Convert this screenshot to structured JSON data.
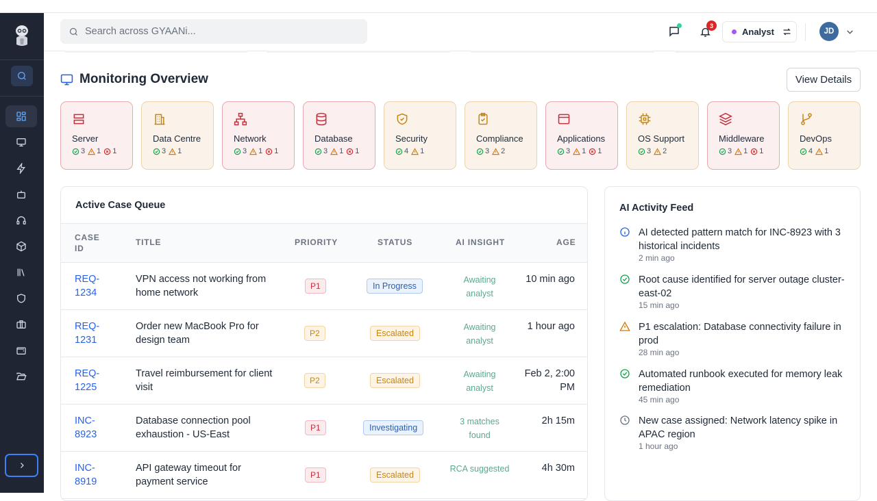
{
  "search": {
    "placeholder": "Search across GYAANi..."
  },
  "header": {
    "notifications_count": "3",
    "role_label": "Analyst",
    "avatar_initials": "JD"
  },
  "overview": {
    "title": "Monitoring Overview",
    "view_details": "View Details",
    "cards": [
      {
        "name": "Server",
        "ok": "3",
        "warn": "1",
        "err": "1",
        "icon": "server-icon",
        "tone": "red"
      },
      {
        "name": "Data Centre",
        "ok": "3",
        "warn": "1",
        "err": "",
        "icon": "building-icon",
        "tone": "amber"
      },
      {
        "name": "Network",
        "ok": "3",
        "warn": "1",
        "err": "1",
        "icon": "network-icon",
        "tone": "red"
      },
      {
        "name": "Database",
        "ok": "3",
        "warn": "1",
        "err": "1",
        "icon": "database-icon",
        "tone": "red"
      },
      {
        "name": "Security",
        "ok": "4",
        "warn": "1",
        "err": "",
        "icon": "shield-check-icon",
        "tone": "amber"
      },
      {
        "name": "Compliance",
        "ok": "3",
        "warn": "2",
        "err": "",
        "icon": "clipboard-check-icon",
        "tone": "amber"
      },
      {
        "name": "Applications",
        "ok": "3",
        "warn": "1",
        "err": "1",
        "icon": "app-window-icon",
        "tone": "red"
      },
      {
        "name": "OS Support",
        "ok": "3",
        "warn": "2",
        "err": "",
        "icon": "cpu-icon",
        "tone": "amber"
      },
      {
        "name": "Middleware",
        "ok": "3",
        "warn": "1",
        "err": "1",
        "icon": "layers-icon",
        "tone": "red"
      },
      {
        "name": "DevOps",
        "ok": "4",
        "warn": "1",
        "err": "",
        "icon": "git-branch-icon",
        "tone": "amber"
      }
    ]
  },
  "queue": {
    "title": "Active Case Queue",
    "columns": [
      "CASE ID",
      "TITLE",
      "PRIORITY",
      "STATUS",
      "AI INSIGHT",
      "AGE"
    ],
    "rows": [
      {
        "id": "REQ-1234",
        "title": "VPN access not working from home network",
        "priority": "P1",
        "status": "In Progress",
        "insight": "Awaiting analyst",
        "age": "10 min ago"
      },
      {
        "id": "REQ-1231",
        "title": "Order new MacBook Pro for design team",
        "priority": "P2",
        "status": "Escalated",
        "insight": "Awaiting analyst",
        "age": "1 hour ago"
      },
      {
        "id": "REQ-1225",
        "title": "Travel reimbursement for client visit",
        "priority": "P2",
        "status": "Escalated",
        "insight": "Awaiting analyst",
        "age": "Feb 2, 2:00 PM"
      },
      {
        "id": "INC-8923",
        "title": "Database connection pool exhaustion - US-East",
        "priority": "P1",
        "status": "Investigating",
        "insight": "3 matches found",
        "age": "2h 15m"
      },
      {
        "id": "INC-8919",
        "title": "API gateway timeout for payment service",
        "priority": "P1",
        "status": "Escalated",
        "insight": "RCA suggested",
        "age": "4h 30m"
      }
    ]
  },
  "feed": {
    "title": "AI Activity Feed",
    "items": [
      {
        "text": "AI detected pattern match for INC-8923 with 3 historical incidents",
        "time": "2 min ago",
        "icon": "info-icon"
      },
      {
        "text": "Root cause identified for server outage cluster-east-02",
        "time": "15 min ago",
        "icon": "check-circle-icon"
      },
      {
        "text": "P1 escalation: Database connectivity failure in prod",
        "time": "28 min ago",
        "icon": "warning-icon"
      },
      {
        "text": "Automated runbook executed for memory leak remediation",
        "time": "45 min ago",
        "icon": "check-circle-icon"
      },
      {
        "text": "New case assigned: Network latency spike in APAC region",
        "time": "1 hour ago",
        "icon": "clock-icon"
      }
    ]
  },
  "colors": {
    "sidebar": "#1f2533",
    "accent": "#2563eb",
    "danger": "#dc2626",
    "warning": "#d97706",
    "success": "#16a34a"
  }
}
